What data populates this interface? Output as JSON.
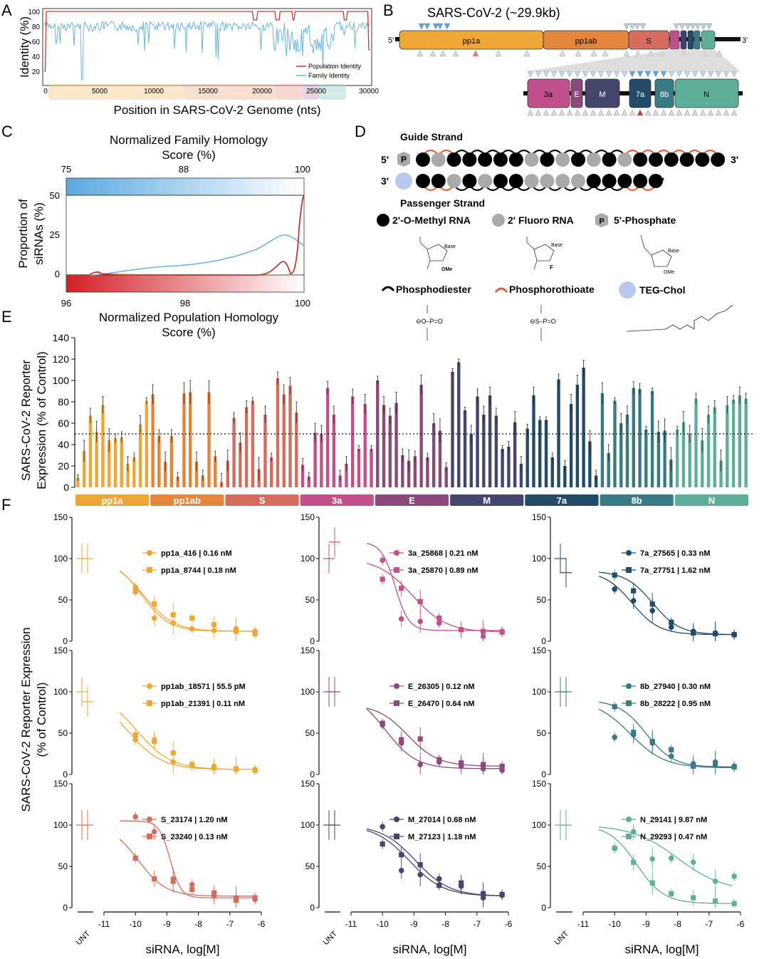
{
  "panel_letters": {
    "A": "A",
    "B": "B",
    "C": "C",
    "D": "D",
    "E": "E",
    "F": "F"
  },
  "panelA": {
    "ylabel": "Identity (%)",
    "xlabel": "Position in SARS-CoV-2 Genome (nts)",
    "legend": [
      "Population Identity",
      "Family Identity"
    ],
    "colors": {
      "population": "#c0392b",
      "family": "#6bb3db"
    }
  },
  "panelB": {
    "title": "SARS-CoV-2 (~29.9kb)",
    "end5": "5'",
    "end3": "3'",
    "genes": [
      {
        "label": "pp1a",
        "color": "#eea637"
      },
      {
        "label": "pp1ab",
        "color": "#e3853a"
      },
      {
        "label": "S",
        "color": "#d56d5e"
      },
      {
        "label": "",
        "color": "#c2508a"
      },
      {
        "label": "",
        "color": "#8c4a7a"
      },
      {
        "label": "",
        "color": "#3d3f6e"
      },
      {
        "label": "",
        "color": "#234a66"
      },
      {
        "label": "",
        "color": "#3a7a84"
      },
      {
        "label": "",
        "color": "#5fae9a"
      }
    ],
    "zoom_genes": [
      {
        "label": "3a",
        "color": "#c2508a"
      },
      {
        "label": "E",
        "color": "#8c4a7a"
      },
      {
        "label": "M",
        "color": "#45466e"
      },
      {
        "label": "7a",
        "color": "#234a66"
      },
      {
        "label": "8b",
        "color": "#3a7a84"
      },
      {
        "label": "N",
        "color": "#5fae9a"
      }
    ]
  },
  "panelC": {
    "top_title_line1": "Normalized Family Homology",
    "top_title_line2": "Score (%)",
    "bottom_title_line1": "Normalized Population Homology",
    "bottom_title_line2": "Score (%)",
    "ylabel_line1": "Proportion of",
    "ylabel_line2": "siRNAs (%)",
    "top_ticks": [
      "75",
      "88",
      "100"
    ],
    "bottom_ticks": [
      "96",
      "98",
      "100"
    ],
    "y_ticks": [
      "0",
      "25",
      "50"
    ]
  },
  "panelD": {
    "guide": "Guide Strand",
    "passenger": "Passenger Strand",
    "end5": "5'",
    "end3": "3'",
    "p": "P",
    "legend": {
      "ome": "2'-O-Methyl RNA",
      "fluoro": "2' Fluoro RNA",
      "phos": "5'-Phosphate",
      "pd": "Phosphodiester",
      "ps": "Phosphorothioate",
      "teg": "TEG-Chol"
    },
    "chem": {
      "base": "Base",
      "ome": "OMe",
      "f": "F"
    }
  },
  "chart_data": [
    {
      "type": "bar",
      "panel": "E",
      "ylabel_line1": "SARS-CoV-2 Reporter",
      "ylabel_line2": "Expression (% of Control)",
      "ylim": [
        0,
        140
      ],
      "yticks": [
        0,
        20,
        40,
        60,
        80,
        100,
        120,
        140
      ],
      "reference_line": 50,
      "groups": [
        {
          "name": "pp1a",
          "color": "#eea637",
          "values": [
            9,
            34,
            67,
            52,
            77,
            44,
            46,
            47,
            22,
            28,
            59,
            81
          ]
        },
        {
          "name": "pp1ab",
          "color": "#e3853a",
          "values": [
            87,
            48,
            24,
            48,
            10,
            88,
            89,
            24,
            11,
            89,
            29,
            5
          ]
        },
        {
          "name": "S",
          "color": "#d56d5e",
          "values": [
            25,
            65,
            42,
            75,
            81,
            17,
            68,
            28,
            102,
            87,
            95,
            70
          ]
        },
        {
          "name": "3a",
          "color": "#c2508a",
          "values": [
            21,
            10,
            51,
            50,
            93,
            68,
            11,
            22,
            85,
            36,
            78,
            36
          ]
        },
        {
          "name": "E",
          "color": "#8c4a7a",
          "values": [
            100,
            77,
            67,
            79,
            30,
            25,
            29,
            96,
            28,
            60,
            53,
            19
          ]
        },
        {
          "name": "M",
          "color": "#45466e",
          "values": [
            108,
            117,
            72,
            50,
            85,
            68,
            86,
            67,
            36,
            38,
            61,
            22
          ]
        },
        {
          "name": "7a",
          "color": "#234a66",
          "values": [
            55,
            86,
            63,
            63,
            28,
            101,
            20,
            78,
            96,
            112,
            43,
            11
          ]
        },
        {
          "name": "8b",
          "color": "#3a7a84",
          "values": [
            88,
            32,
            81,
            60,
            68,
            93,
            92,
            54,
            90,
            52,
            53,
            26
          ]
        },
        {
          "name": "N",
          "color": "#5fae9a",
          "values": [
            54,
            61,
            50,
            83,
            44,
            68,
            75,
            25,
            77,
            82,
            86,
            83
          ]
        }
      ]
    },
    {
      "type": "scatter",
      "panel": "F",
      "ylabel_line1": "SARS-CoV-2 Reporter Expression",
      "ylabel_line2": "(% of Control)",
      "xlabel": "siRNA, log[M]",
      "unt": "UNT",
      "xticks": [
        "-11",
        "-10",
        "-9",
        "-8",
        "-7",
        "-6"
      ],
      "yticks": [
        "0",
        "50",
        "100",
        "150"
      ],
      "x": [
        -10,
        -9.4,
        -8.8,
        -8.2,
        -7.5,
        -6.8,
        -6.2
      ],
      "subplots": [
        {
          "color": "#eea637",
          "series": [
            {
              "name": "pp1a_416",
              "ic50": "| 0.16 nM",
              "unt": 100,
              "y": [
                65,
                28,
                22,
                15,
                13,
                15,
                12
              ],
              "top": 100,
              "bottom": 12,
              "logec": -9.8,
              "hill": 1.0
            },
            {
              "name": "pp1a_8744",
              "ic50": "| 0.18 nM",
              "unt": 100,
              "y": [
                60,
                45,
                32,
                28,
                20,
                12,
                9
              ],
              "top": 100,
              "bottom": 12,
              "logec": -9.75,
              "hill": 0.9
            }
          ]
        },
        {
          "color": "#c2508a",
          "series": [
            {
              "name": "3a_25868",
              "ic50": "| 0.21 nM",
              "unt": 100,
              "y": [
                98,
                27,
                24,
                22,
                14,
                6,
                12
              ],
              "top": 120,
              "bottom": 13,
              "logec": -9.6,
              "hill": 2.0
            },
            {
              "name": "3a_25870",
              "ic50": "| 0.89 nM",
              "unt": 120,
              "y": [
                75,
                64,
                48,
                28,
                14,
                12,
                11
              ],
              "top": 100,
              "bottom": 11,
              "logec": -9.05,
              "hill": 0.8
            }
          ]
        },
        {
          "color": "#234a66",
          "series": [
            {
              "name": "7a_27565",
              "ic50": "| 0.33 nM",
              "unt": 100,
              "y": [
                63,
                49,
                37,
                17,
                12,
                10,
                8
              ],
              "top": 85,
              "bottom": 8,
              "logec": -9.45,
              "hill": 1.0
            },
            {
              "name": "7a_27751",
              "ic50": "| 1.62 nM",
              "unt": 83,
              "y": [
                80,
                61,
                45,
                23,
                10,
                9,
                8
              ],
              "top": 85,
              "bottom": 8,
              "logec": -8.8,
              "hill": 1.0
            }
          ]
        },
        {
          "color": "#eea637",
          "series": [
            {
              "name": "pp1ab_18571",
              "ic50": "| 55.5 pM",
              "unt": 100,
              "y": [
                42,
                42,
                15,
                11,
                10,
                6,
                6
              ],
              "top": 100,
              "bottom": 6,
              "logec": -10.25,
              "hill": 0.8
            },
            {
              "name": "pp1ab_21391",
              "ic50": "| 0.11 nM",
              "unt": 88,
              "y": [
                48,
                40,
                26,
                12,
                8,
                7,
                5
              ],
              "top": 100,
              "bottom": 6,
              "logec": -9.95,
              "hill": 0.8
            }
          ]
        },
        {
          "color": "#8c4a7a",
          "series": [
            {
              "name": "E_26305",
              "ic50": "| 0.12 nM",
              "unt": 100,
              "y": [
                60,
                38,
                12,
                15,
                10,
                7,
                5
              ],
              "top": 100,
              "bottom": 7,
              "logec": -9.9,
              "hill": 0.9
            },
            {
              "name": "E_26470",
              "ic50": "| 0.64 nM",
              "unt": 100,
              "y": [
                62,
                42,
                43,
                18,
                14,
                12,
                10
              ],
              "top": 85,
              "bottom": 10,
              "logec": -9.2,
              "hill": 0.9
            }
          ]
        },
        {
          "color": "#3a7a84",
          "series": [
            {
              "name": "8b_27940",
              "ic50": "| 0.30 nM",
              "unt": 100,
              "y": [
                45,
                48,
                38,
                22,
                13,
                15,
                10
              ],
              "top": 90,
              "bottom": 8,
              "logec": -9.5,
              "hill": 0.8
            },
            {
              "name": "8b_28222",
              "ic50": "| 0.95 nM",
              "unt": 100,
              "y": [
                82,
                51,
                40,
                30,
                10,
                12,
                9
              ],
              "top": 90,
              "bottom": 9,
              "logec": -9.0,
              "hill": 1.0
            }
          ]
        },
        {
          "color": "#d56d5e",
          "series": [
            {
              "name": "S_23174",
              "ic50": "| 1.20 nM",
              "unt": 100,
              "y": [
                110,
                92,
                35,
                28,
                14,
                12,
                10
              ],
              "top": 105,
              "bottom": 12,
              "logec": -8.9,
              "hill": 2.5
            },
            {
              "name": "S_23240",
              "ic50": "| 0.13 nM",
              "unt": 100,
              "y": [
                60,
                35,
                32,
                22,
                18,
                9,
                12
              ],
              "top": 100,
              "bottom": 14,
              "logec": -9.9,
              "hill": 1.0
            }
          ]
        },
        {
          "color": "#45466e",
          "series": [
            {
              "name": "M_27014",
              "ic50": "| 0.68 nM",
              "unt": 100,
              "y": [
                98,
                45,
                40,
                35,
                26,
                12,
                15
              ],
              "top": 100,
              "bottom": 14,
              "logec": -9.15,
              "hill": 0.8
            },
            {
              "name": "M_27123",
              "ic50": "| 1.18 nM",
              "unt": 100,
              "y": [
                77,
                64,
                52,
                27,
                30,
                17,
                16
              ],
              "top": 100,
              "bottom": 14,
              "logec": -8.95,
              "hill": 0.8
            }
          ]
        },
        {
          "color": "#5fae9a",
          "series": [
            {
              "name": "N_29141",
              "ic50": "| 9.87 nM",
              "unt": 100,
              "y": [
                72,
                92,
                59,
                60,
                55,
                32,
                38
              ],
              "top": 100,
              "bottom": 20,
              "logec": -8.0,
              "hill": 0.6
            },
            {
              "name": "N_29293",
              "ic50": "| 0.47 nM",
              "unt": 100,
              "y": [
                72,
                55,
                30,
                17,
                12,
                8,
                5
              ],
              "top": 100,
              "bottom": 5,
              "logec": -9.3,
              "hill": 1.0
            }
          ]
        }
      ]
    }
  ]
}
